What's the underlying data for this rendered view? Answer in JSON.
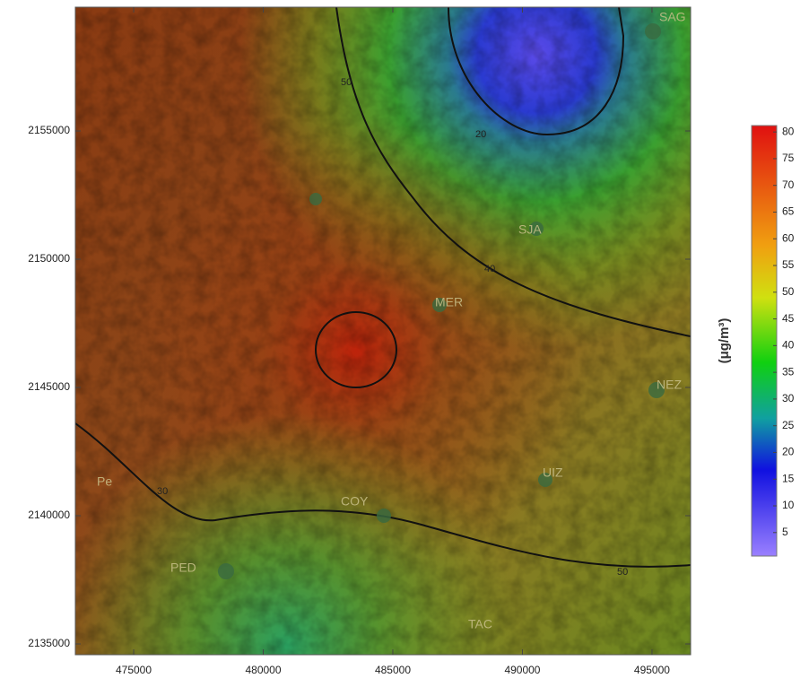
{
  "map": {
    "xlim": [
      472750,
      496490
    ],
    "ylim": [
      2134580,
      2159825
    ],
    "xticks": [
      475000,
      480000,
      485000,
      490000,
      495000
    ],
    "yticks": [
      2135000,
      2140000,
      2145000,
      2150000,
      2155000
    ],
    "colorbar": {
      "label": "(μg/m³)",
      "lim": [
        0.6,
        81.2
      ],
      "ticks": [
        5,
        10,
        15,
        20,
        25,
        30,
        35,
        40,
        45,
        50,
        55,
        60,
        65,
        70,
        75,
        80
      ]
    },
    "stations": [
      "SJA",
      "MER",
      "NEZ",
      "UIZ",
      "COY",
      "PED",
      "Pe",
      "TAC",
      "SAG"
    ],
    "contour_labels": [
      "40",
      "50",
      "30",
      "50",
      "20"
    ]
  }
}
